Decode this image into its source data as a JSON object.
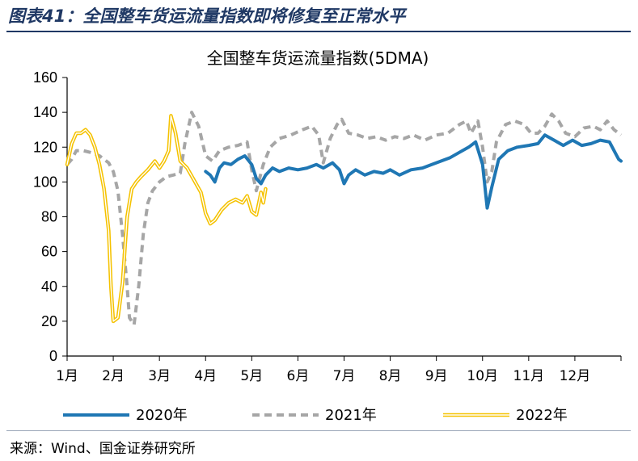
{
  "header": {
    "figure_title": "图表41：全国整车货运流量指数即将修复至正常水平"
  },
  "footer": {
    "source": "来源：Wind、国金证券研究所"
  },
  "colors": {
    "s2020": "#1f77b4",
    "s2021": "#a6a6a6",
    "s2022": "#f5c200",
    "title": "#1f3864"
  },
  "chart_data": {
    "type": "line",
    "title": "全国整车货运流量指数(5DMA)",
    "xlabel": "",
    "ylabel": "",
    "ylim": [
      0,
      160
    ],
    "yticks": [
      0,
      20,
      40,
      60,
      80,
      100,
      120,
      140,
      160
    ],
    "xlim": [
      1,
      13
    ],
    "month_labels": [
      "1月",
      "2月",
      "3月",
      "4月",
      "5月",
      "6月",
      "7月",
      "8月",
      "9月",
      "10月",
      "11月",
      "12月"
    ],
    "grid": false,
    "legend_position": "bottom",
    "series": [
      {
        "name": "2020年",
        "style": "solid",
        "points": [
          [
            4.0,
            106
          ],
          [
            4.1,
            104
          ],
          [
            4.2,
            100
          ],
          [
            4.3,
            108
          ],
          [
            4.4,
            111
          ],
          [
            4.55,
            110
          ],
          [
            4.7,
            113
          ],
          [
            4.85,
            115
          ],
          [
            5.0,
            110
          ],
          [
            5.1,
            102
          ],
          [
            5.2,
            99
          ],
          [
            5.3,
            104
          ],
          [
            5.45,
            108
          ],
          [
            5.6,
            106
          ],
          [
            5.8,
            108
          ],
          [
            6.0,
            107
          ],
          [
            6.2,
            108
          ],
          [
            6.4,
            110
          ],
          [
            6.55,
            108
          ],
          [
            6.75,
            111
          ],
          [
            6.9,
            107
          ],
          [
            7.0,
            99
          ],
          [
            7.1,
            104
          ],
          [
            7.25,
            107
          ],
          [
            7.45,
            104
          ],
          [
            7.65,
            106
          ],
          [
            7.85,
            105
          ],
          [
            8.0,
            107
          ],
          [
            8.2,
            104
          ],
          [
            8.45,
            107
          ],
          [
            8.7,
            108
          ],
          [
            8.9,
            110
          ],
          [
            9.1,
            112
          ],
          [
            9.3,
            114
          ],
          [
            9.5,
            117
          ],
          [
            9.7,
            120
          ],
          [
            9.85,
            123
          ],
          [
            10.0,
            110
          ],
          [
            10.1,
            85
          ],
          [
            10.2,
            97
          ],
          [
            10.35,
            113
          ],
          [
            10.55,
            118
          ],
          [
            10.75,
            120
          ],
          [
            11.0,
            121
          ],
          [
            11.2,
            122
          ],
          [
            11.35,
            127
          ],
          [
            11.55,
            124
          ],
          [
            11.75,
            121
          ],
          [
            11.95,
            124
          ],
          [
            12.15,
            121
          ],
          [
            12.35,
            122
          ],
          [
            12.55,
            124
          ],
          [
            12.75,
            123
          ],
          [
            12.85,
            118
          ],
          [
            12.95,
            113
          ],
          [
            13.0,
            112
          ]
        ]
      },
      {
        "name": "2021年",
        "style": "dashed",
        "points": [
          [
            1.0,
            110
          ],
          [
            1.1,
            113
          ],
          [
            1.2,
            118
          ],
          [
            1.35,
            118
          ],
          [
            1.5,
            117
          ],
          [
            1.7,
            115
          ],
          [
            1.9,
            111
          ],
          [
            2.0,
            106
          ],
          [
            2.1,
            95
          ],
          [
            2.2,
            70
          ],
          [
            2.3,
            40
          ],
          [
            2.35,
            22
          ],
          [
            2.45,
            18
          ],
          [
            2.55,
            40
          ],
          [
            2.65,
            70
          ],
          [
            2.75,
            88
          ],
          [
            2.85,
            95
          ],
          [
            3.0,
            100
          ],
          [
            3.15,
            103
          ],
          [
            3.3,
            104
          ],
          [
            3.45,
            105
          ],
          [
            3.55,
            122
          ],
          [
            3.7,
            140
          ],
          [
            3.85,
            132
          ],
          [
            4.0,
            115
          ],
          [
            4.15,
            112
          ],
          [
            4.3,
            118
          ],
          [
            4.5,
            120
          ],
          [
            4.7,
            121
          ],
          [
            4.9,
            123
          ],
          [
            5.0,
            107
          ],
          [
            5.1,
            95
          ],
          [
            5.25,
            110
          ],
          [
            5.4,
            120
          ],
          [
            5.6,
            125
          ],
          [
            5.85,
            127
          ],
          [
            6.1,
            130
          ],
          [
            6.3,
            132
          ],
          [
            6.45,
            127
          ],
          [
            6.55,
            111
          ],
          [
            6.7,
            125
          ],
          [
            6.85,
            133
          ],
          [
            6.95,
            136
          ],
          [
            7.1,
            128
          ],
          [
            7.3,
            127
          ],
          [
            7.5,
            125
          ],
          [
            7.7,
            126
          ],
          [
            7.9,
            124
          ],
          [
            8.1,
            126
          ],
          [
            8.3,
            125
          ],
          [
            8.5,
            127
          ],
          [
            8.75,
            124
          ],
          [
            9.0,
            127
          ],
          [
            9.25,
            128
          ],
          [
            9.5,
            133
          ],
          [
            9.65,
            135
          ],
          [
            9.75,
            128
          ],
          [
            9.9,
            135
          ],
          [
            10.0,
            120
          ],
          [
            10.1,
            100
          ],
          [
            10.2,
            106
          ],
          [
            10.3,
            123
          ],
          [
            10.5,
            133
          ],
          [
            10.7,
            135
          ],
          [
            10.9,
            133
          ],
          [
            11.05,
            128
          ],
          [
            11.2,
            128
          ],
          [
            11.35,
            132
          ],
          [
            11.5,
            139
          ],
          [
            11.65,
            135
          ],
          [
            11.8,
            128
          ],
          [
            12.0,
            126
          ],
          [
            12.2,
            131
          ],
          [
            12.4,
            132
          ],
          [
            12.55,
            130
          ],
          [
            12.7,
            135
          ],
          [
            12.85,
            130
          ],
          [
            13.0,
            127
          ]
        ]
      },
      {
        "name": "2022年",
        "style": "double",
        "points": [
          [
            1.0,
            110
          ],
          [
            1.1,
            122
          ],
          [
            1.2,
            128
          ],
          [
            1.3,
            128
          ],
          [
            1.4,
            130
          ],
          [
            1.5,
            127
          ],
          [
            1.6,
            120
          ],
          [
            1.7,
            110
          ],
          [
            1.8,
            96
          ],
          [
            1.9,
            72
          ],
          [
            1.95,
            40
          ],
          [
            2.0,
            20
          ],
          [
            2.1,
            22
          ],
          [
            2.2,
            42
          ],
          [
            2.3,
            80
          ],
          [
            2.4,
            96
          ],
          [
            2.5,
            100
          ],
          [
            2.6,
            103
          ],
          [
            2.75,
            107
          ],
          [
            2.9,
            112
          ],
          [
            3.0,
            108
          ],
          [
            3.1,
            112
          ],
          [
            3.2,
            118
          ],
          [
            3.25,
            138
          ],
          [
            3.35,
            128
          ],
          [
            3.45,
            112
          ],
          [
            3.6,
            108
          ],
          [
            3.75,
            101
          ],
          [
            3.9,
            94
          ],
          [
            4.0,
            82
          ],
          [
            4.1,
            76
          ],
          [
            4.2,
            78
          ],
          [
            4.35,
            84
          ],
          [
            4.5,
            88
          ],
          [
            4.65,
            90
          ],
          [
            4.8,
            88
          ],
          [
            4.9,
            92
          ],
          [
            5.0,
            83
          ],
          [
            5.1,
            81
          ],
          [
            5.2,
            94
          ],
          [
            5.25,
            88
          ],
          [
            5.3,
            96
          ]
        ]
      }
    ]
  }
}
